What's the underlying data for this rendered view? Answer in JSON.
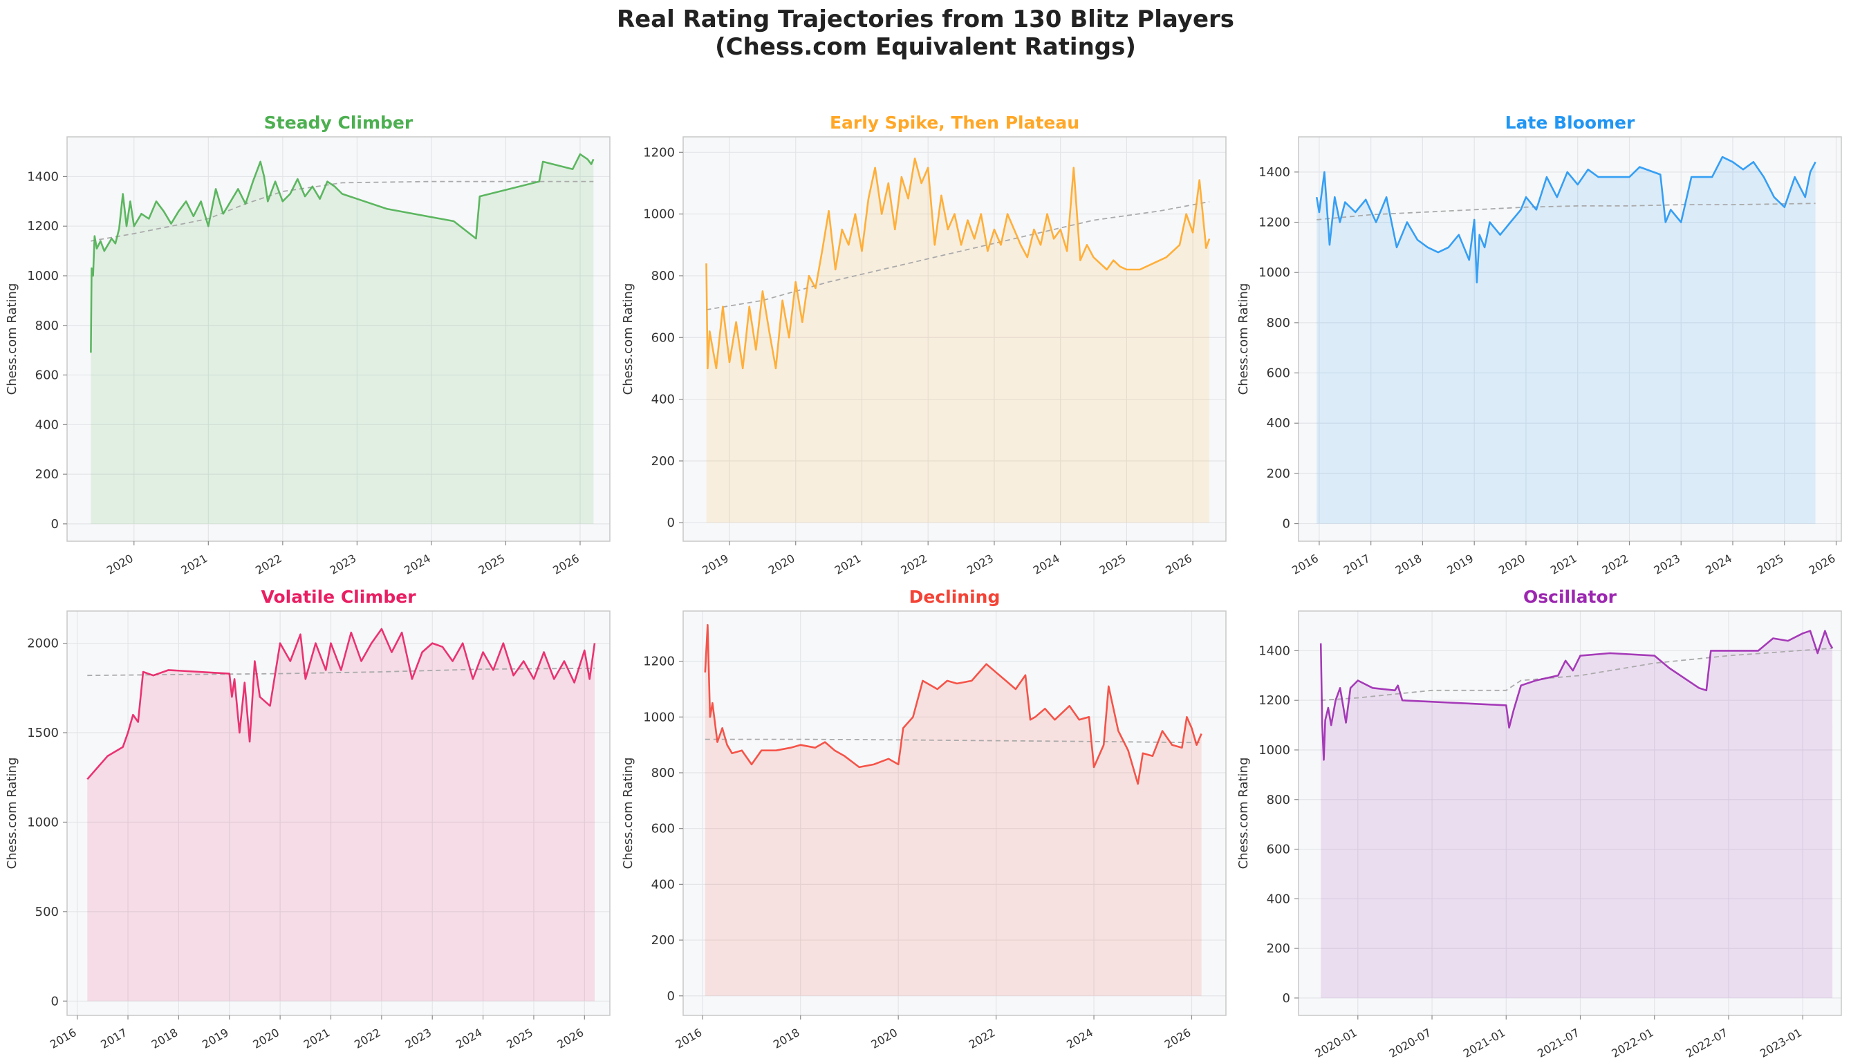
{
  "figure": {
    "title_line1": "Real Rating Trajectories from 130 Blitz Players",
    "title_line2": "(Chess.com Equivalent Ratings)"
  },
  "chart_data": [
    {
      "type": "area",
      "title": "Steady Climber",
      "color": "#4caf50",
      "ylabel": "Chess.com Rating",
      "xlabel": "",
      "x_unit": "date",
      "xlim": [
        2019.1,
        2026.4
      ],
      "ylim": [
        -70,
        1560
      ],
      "xticks": [
        "2020",
        "2021",
        "2022",
        "2023",
        "2024",
        "2025",
        "2026"
      ],
      "yticks": [
        0,
        200,
        400,
        600,
        800,
        1000,
        1200,
        1400
      ],
      "grid": true,
      "series": [
        {
          "style": "solid",
          "x": [
            2019.42,
            2019.43,
            2019.45,
            2019.47,
            2019.5,
            2019.55,
            2019.6,
            2019.7,
            2019.75,
            2019.8,
            2019.85,
            2019.9,
            2019.95,
            2020.0,
            2020.1,
            2020.2,
            2020.3,
            2020.4,
            2020.5,
            2020.6,
            2020.7,
            2020.8,
            2020.9,
            2021.0,
            2021.1,
            2021.2,
            2021.3,
            2021.4,
            2021.5,
            2021.6,
            2021.7,
            2021.75,
            2021.8,
            2021.9,
            2022.0,
            2022.1,
            2022.2,
            2022.3,
            2022.4,
            2022.5,
            2022.6,
            2022.7,
            2022.8,
            2023.0,
            2023.4,
            2024.3,
            2024.6,
            2024.65,
            2025.45,
            2025.5,
            2025.9,
            2026.0,
            2026.1,
            2026.15,
            2026.18
          ],
          "y": [
            690,
            1030,
            1000,
            1160,
            1110,
            1140,
            1100,
            1150,
            1130,
            1190,
            1330,
            1200,
            1300,
            1200,
            1250,
            1230,
            1300,
            1260,
            1210,
            1260,
            1300,
            1240,
            1300,
            1200,
            1350,
            1250,
            1300,
            1350,
            1290,
            1380,
            1460,
            1400,
            1300,
            1380,
            1300,
            1330,
            1390,
            1320,
            1360,
            1310,
            1380,
            1360,
            1330,
            1310,
            1270,
            1220,
            1150,
            1320,
            1380,
            1460,
            1430,
            1490,
            1470,
            1450,
            1470
          ]
        },
        {
          "style": "dashed",
          "x": [
            2019.42,
            2020.0,
            2020.5,
            2021.0,
            2021.5,
            2022.0,
            2022.8,
            2024.0,
            2025.0,
            2026.18
          ],
          "y": [
            1140,
            1170,
            1200,
            1230,
            1290,
            1340,
            1375,
            1380,
            1380,
            1380
          ]
        }
      ]
    },
    {
      "type": "area",
      "title": "Early Spike, Then Plateau",
      "color": "#ffa726",
      "ylabel": "Chess.com Rating",
      "xlabel": "",
      "x_unit": "date",
      "xlim": [
        2018.3,
        2026.5
      ],
      "ylim": [
        -60,
        1250
      ],
      "xticks": [
        "2019",
        "2020",
        "2021",
        "2022",
        "2023",
        "2024",
        "2025",
        "2026"
      ],
      "yticks": [
        0,
        200,
        400,
        600,
        800,
        1000,
        1200
      ],
      "grid": true,
      "series": [
        {
          "style": "solid",
          "x": [
            2018.65,
            2018.67,
            2018.7,
            2018.8,
            2018.9,
            2019.0,
            2019.1,
            2019.2,
            2019.3,
            2019.4,
            2019.5,
            2019.6,
            2019.7,
            2019.8,
            2019.9,
            2020.0,
            2020.1,
            2020.2,
            2020.3,
            2020.4,
            2020.5,
            2020.6,
            2020.7,
            2020.8,
            2020.9,
            2021.0,
            2021.1,
            2021.2,
            2021.3,
            2021.4,
            2021.5,
            2021.6,
            2021.7,
            2021.8,
            2021.9,
            2022.0,
            2022.1,
            2022.2,
            2022.3,
            2022.4,
            2022.5,
            2022.6,
            2022.7,
            2022.8,
            2022.9,
            2023.0,
            2023.1,
            2023.2,
            2023.3,
            2023.4,
            2023.5,
            2023.6,
            2023.7,
            2023.8,
            2023.9,
            2024.0,
            2024.1,
            2024.2,
            2024.3,
            2024.4,
            2024.5,
            2024.6,
            2024.7,
            2024.8,
            2024.9,
            2025.0,
            2025.2,
            2025.4,
            2025.6,
            2025.8,
            2025.9,
            2026.0,
            2026.1,
            2026.2,
            2026.25
          ],
          "y": [
            840,
            500,
            620,
            500,
            700,
            520,
            650,
            500,
            700,
            560,
            750,
            620,
            500,
            720,
            600,
            780,
            650,
            800,
            760,
            880,
            1010,
            820,
            950,
            900,
            1000,
            880,
            1050,
            1150,
            1000,
            1100,
            950,
            1120,
            1050,
            1180,
            1100,
            1150,
            900,
            1060,
            950,
            1000,
            900,
            980,
            920,
            1000,
            880,
            950,
            900,
            1000,
            950,
            900,
            860,
            950,
            900,
            1000,
            920,
            950,
            880,
            1150,
            850,
            900,
            860,
            840,
            820,
            850,
            830,
            820,
            820,
            840,
            860,
            900,
            1000,
            940,
            1110,
            890,
            920
          ]
        },
        {
          "style": "dashed",
          "x": [
            2018.65,
            2019.5,
            2020.5,
            2021.5,
            2022.5,
            2023.5,
            2024.5,
            2025.5,
            2026.25
          ],
          "y": [
            690,
            720,
            780,
            830,
            880,
            930,
            980,
            1010,
            1040
          ]
        }
      ]
    },
    {
      "type": "area",
      "title": "Late Bloomer",
      "color": "#2196f3",
      "ylabel": "Chess.com Rating",
      "xlabel": "",
      "x_unit": "date",
      "xlim": [
        2015.6,
        2026.1
      ],
      "ylim": [
        -70,
        1540
      ],
      "xticks": [
        "2016",
        "2017",
        "2018",
        "2019",
        "2020",
        "2021",
        "2022",
        "2023",
        "2024",
        "2025",
        "2026"
      ],
      "yticks": [
        0,
        200,
        400,
        600,
        800,
        1000,
        1200,
        1400
      ],
      "grid": true,
      "series": [
        {
          "style": "solid",
          "x": [
            2015.95,
            2016.0,
            2016.1,
            2016.2,
            2016.3,
            2016.4,
            2016.5,
            2016.7,
            2016.9,
            2017.1,
            2017.3,
            2017.5,
            2017.7,
            2017.9,
            2018.1,
            2018.3,
            2018.5,
            2018.7,
            2018.9,
            2019.0,
            2019.05,
            2019.1,
            2019.2,
            2019.3,
            2019.5,
            2019.7,
            2019.9,
            2020.0,
            2020.2,
            2020.4,
            2020.6,
            2020.8,
            2021.0,
            2021.2,
            2021.4,
            2021.6,
            2022.0,
            2022.2,
            2022.6,
            2022.7,
            2022.8,
            2023.0,
            2023.2,
            2023.4,
            2023.6,
            2023.8,
            2024.0,
            2024.2,
            2024.4,
            2024.6,
            2024.8,
            2025.0,
            2025.2,
            2025.4,
            2025.5,
            2025.6
          ],
          "y": [
            1300,
            1240,
            1400,
            1110,
            1300,
            1200,
            1280,
            1240,
            1290,
            1200,
            1300,
            1100,
            1200,
            1130,
            1100,
            1080,
            1100,
            1150,
            1050,
            1210,
            960,
            1150,
            1100,
            1200,
            1150,
            1200,
            1250,
            1300,
            1250,
            1380,
            1300,
            1400,
            1350,
            1410,
            1380,
            1380,
            1380,
            1420,
            1390,
            1200,
            1250,
            1200,
            1380,
            1380,
            1380,
            1460,
            1440,
            1410,
            1440,
            1380,
            1300,
            1260,
            1380,
            1300,
            1400,
            1440
          ]
        },
        {
          "style": "dashed",
          "x": [
            2015.95,
            2017.0,
            2018.0,
            2019.0,
            2020.0,
            2021.0,
            2022.0,
            2023.0,
            2024.0,
            2025.6
          ],
          "y": [
            1210,
            1230,
            1240,
            1250,
            1260,
            1265,
            1265,
            1270,
            1270,
            1275
          ]
        }
      ]
    },
    {
      "type": "area",
      "title": "Volatile Climber",
      "color": "#e91e63",
      "ylabel": "Chess.com Rating",
      "xlabel": "",
      "x_unit": "date",
      "xlim": [
        2015.8,
        2026.5
      ],
      "ylim": [
        -80,
        2180
      ],
      "xticks": [
        "2016",
        "2017",
        "2018",
        "2019",
        "2020",
        "2021",
        "2022",
        "2023",
        "2024",
        "2025",
        "2026"
      ],
      "yticks": [
        0,
        500,
        1000,
        1500,
        2000
      ],
      "grid": true,
      "series": [
        {
          "style": "solid",
          "x": [
            2016.2,
            2016.6,
            2016.9,
            2017.0,
            2017.1,
            2017.2,
            2017.3,
            2017.5,
            2017.8,
            2019.0,
            2019.05,
            2019.1,
            2019.2,
            2019.3,
            2019.4,
            2019.5,
            2019.6,
            2019.8,
            2020.0,
            2020.2,
            2020.4,
            2020.5,
            2020.7,
            2020.9,
            2021.0,
            2021.2,
            2021.4,
            2021.6,
            2021.8,
            2022.0,
            2022.2,
            2022.4,
            2022.6,
            2022.8,
            2023.0,
            2023.2,
            2023.4,
            2023.6,
            2023.8,
            2024.0,
            2024.2,
            2024.4,
            2024.6,
            2024.8,
            2025.0,
            2025.2,
            2025.4,
            2025.6,
            2025.8,
            2026.0,
            2026.1,
            2026.2
          ],
          "y": [
            1240,
            1370,
            1420,
            1500,
            1600,
            1560,
            1840,
            1820,
            1850,
            1830,
            1700,
            1800,
            1500,
            1780,
            1450,
            1900,
            1700,
            1650,
            2000,
            1900,
            2050,
            1800,
            2000,
            1850,
            2000,
            1850,
            2060,
            1900,
            2000,
            2080,
            1950,
            2060,
            1800,
            1950,
            2000,
            1980,
            1900,
            2000,
            1800,
            1950,
            1850,
            2000,
            1820,
            1900,
            1800,
            1950,
            1800,
            1900,
            1780,
            1960,
            1800,
            2000
          ]
        },
        {
          "style": "dashed",
          "x": [
            2016.2,
            2018.0,
            2020.0,
            2022.0,
            2024.0,
            2026.2
          ],
          "y": [
            1820,
            1825,
            1830,
            1840,
            1855,
            1860
          ]
        }
      ]
    },
    {
      "type": "area",
      "title": "Declining",
      "color": "#f44336",
      "ylabel": "Chess.com Rating",
      "xlabel": "",
      "x_unit": "date",
      "xlim": [
        2015.6,
        2026.7
      ],
      "ylim": [
        -70,
        1380
      ],
      "xticks": [
        "2016",
        "2018",
        "2020",
        "2022",
        "2024",
        "2026"
      ],
      "yticks": [
        0,
        200,
        400,
        600,
        800,
        1000,
        1200
      ],
      "grid": true,
      "series": [
        {
          "style": "solid",
          "x": [
            2016.05,
            2016.1,
            2016.15,
            2016.2,
            2016.3,
            2016.4,
            2016.5,
            2016.6,
            2016.8,
            2017.0,
            2017.2,
            2017.5,
            2017.8,
            2018.0,
            2018.3,
            2018.5,
            2018.7,
            2018.9,
            2019.2,
            2019.5,
            2019.8,
            2020.0,
            2020.1,
            2020.3,
            2020.5,
            2020.8,
            2021.0,
            2021.2,
            2021.5,
            2021.8,
            2022.0,
            2022.2,
            2022.4,
            2022.6,
            2022.7,
            2022.8,
            2023.0,
            2023.2,
            2023.5,
            2023.7,
            2023.9,
            2024.0,
            2024.2,
            2024.3,
            2024.5,
            2024.7,
            2024.9,
            2025.0,
            2025.2,
            2025.4,
            2025.6,
            2025.8,
            2025.9,
            2026.0,
            2026.1,
            2026.2
          ],
          "y": [
            1160,
            1330,
            1000,
            1050,
            910,
            960,
            900,
            870,
            880,
            830,
            880,
            880,
            890,
            900,
            890,
            910,
            880,
            860,
            820,
            830,
            850,
            830,
            960,
            1000,
            1130,
            1100,
            1130,
            1120,
            1130,
            1190,
            1160,
            1130,
            1100,
            1150,
            990,
            1000,
            1030,
            990,
            1040,
            990,
            1000,
            820,
            900,
            1110,
            950,
            880,
            760,
            870,
            860,
            950,
            900,
            890,
            1000,
            960,
            900,
            940
          ]
        },
        {
          "style": "dashed",
          "x": [
            2016.05,
            2018.0,
            2020.0,
            2022.0,
            2024.0,
            2026.2
          ],
          "y": [
            920,
            920,
            918,
            915,
            912,
            908
          ]
        }
      ]
    },
    {
      "type": "area",
      "title": "Oscillator",
      "color": "#9c27b0",
      "ylabel": "Chess.com Rating",
      "xlabel": "",
      "x_unit": "date",
      "xlim": [
        2019.6,
        2023.26
      ],
      "ylim": [
        -70,
        1560
      ],
      "xticks": [
        "2020-01",
        "2020-07",
        "2021-01",
        "2021-07",
        "2022-01",
        "2022-07",
        "2023-01"
      ],
      "yticks": [
        0,
        200,
        400,
        600,
        800,
        1000,
        1200,
        1400
      ],
      "grid": true,
      "series": [
        {
          "style": "solid",
          "x": [
            2019.75,
            2019.76,
            2019.77,
            2019.78,
            2019.8,
            2019.82,
            2019.85,
            2019.88,
            2019.92,
            2019.95,
            2020.0,
            2020.1,
            2020.25,
            2020.27,
            2020.3,
            2021.0,
            2021.02,
            2021.05,
            2021.1,
            2021.2,
            2021.35,
            2021.4,
            2021.45,
            2021.5,
            2021.7,
            2022.0,
            2022.1,
            2022.3,
            2022.35,
            2022.38,
            2022.5,
            2022.7,
            2022.8,
            2022.9,
            2023.0,
            2023.05,
            2023.1,
            2023.15,
            2023.18,
            2023.2
          ],
          "y": [
            1430,
            1100,
            960,
            1120,
            1170,
            1100,
            1200,
            1250,
            1110,
            1250,
            1280,
            1250,
            1240,
            1260,
            1200,
            1180,
            1090,
            1160,
            1260,
            1280,
            1300,
            1360,
            1320,
            1380,
            1390,
            1380,
            1330,
            1250,
            1240,
            1400,
            1400,
            1400,
            1450,
            1440,
            1470,
            1480,
            1390,
            1480,
            1430,
            1410
          ]
        },
        {
          "style": "dashed",
          "x": [
            2019.75,
            2020.0,
            2020.5,
            2021.0,
            2021.1,
            2021.5,
            2022.0,
            2022.5,
            2023.2
          ],
          "y": [
            1200,
            1210,
            1240,
            1240,
            1280,
            1300,
            1350,
            1380,
            1410
          ]
        }
      ]
    }
  ]
}
